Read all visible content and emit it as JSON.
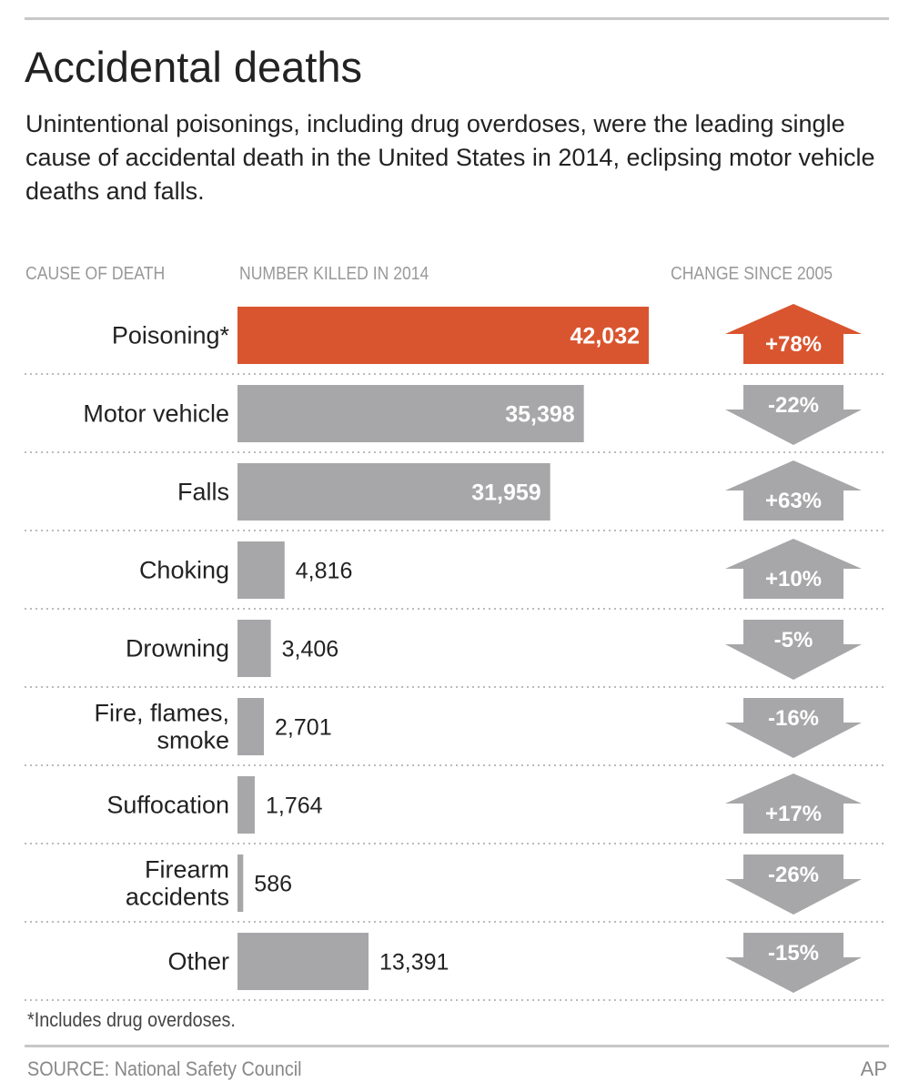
{
  "title": "Accidental deaths",
  "subtitle": "Unintentional poisonings, including drug overdoses, were the leading single cause of accidental death in the United States in 2014, eclipsing motor vehicle deaths and falls.",
  "chart_data": {
    "type": "bar",
    "headers": {
      "cause": "CAUSE OF DEATH",
      "number": "NUMBER KILLED IN 2014",
      "change": "CHANGE SINCE 2005"
    },
    "categories": [
      [
        "Poisoning*"
      ],
      [
        "Motor vehicle"
      ],
      [
        "Falls"
      ],
      [
        "Choking"
      ],
      [
        "Drowning"
      ],
      [
        "Fire, flames,",
        "smoke"
      ],
      [
        "Suffocation"
      ],
      [
        "Firearm",
        "accidents"
      ],
      [
        "Other"
      ]
    ],
    "values": [
      42032,
      35398,
      31959,
      4816,
      3406,
      2701,
      1764,
      586,
      13391
    ],
    "value_labels": [
      "42,032",
      "35,398",
      "31,959",
      "4,816",
      "3,406",
      "2,701",
      "1,764",
      "586",
      "13,391"
    ],
    "change": [
      78,
      -22,
      63,
      10,
      -5,
      -16,
      17,
      -26,
      -15
    ],
    "change_labels": [
      "+78%",
      "-22%",
      "+63%",
      "+10%",
      "-5%",
      "-16%",
      "+17%",
      "-26%",
      "-15%"
    ],
    "highlight_index": 0,
    "colors": {
      "highlight": "#d9552f",
      "bar": "#a7a7a9"
    }
  },
  "footnote": "*Includes drug overdoses.",
  "source": "SOURCE: National Safety Council",
  "credit": "AP"
}
